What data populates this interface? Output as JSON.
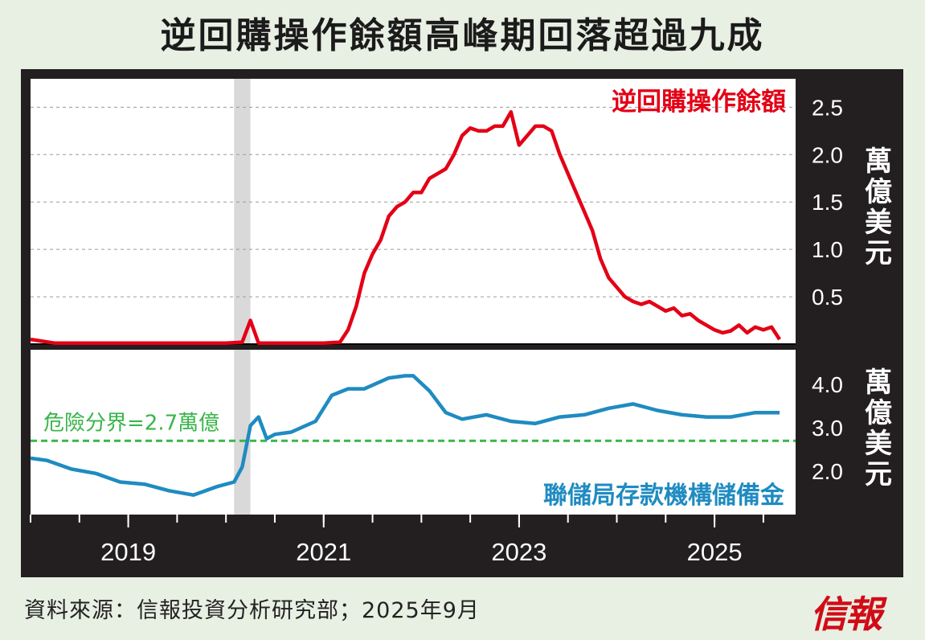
{
  "title": "逆回購操作餘額高峰期回落超過九成",
  "source": "資料來源：信報投資分析研究部；2025年9月",
  "logo": "信報",
  "colors": {
    "background": "#e8efe3",
    "frame": "#231f20",
    "reverse_repo": "#e30016",
    "reserves": "#1f8bc1",
    "danger_line": "#39b54a",
    "recession_band": "#d9d9d9"
  },
  "chart_data": [
    {
      "type": "line",
      "panel": "top",
      "series": [
        {
          "name": "逆回購操作餘額",
          "x": [
            "2018-01",
            "2018-04",
            "2018-07",
            "2018-10",
            "2019-01",
            "2019-04",
            "2019-07",
            "2019-10",
            "2020-01",
            "2020-03",
            "2020-04",
            "2020-05",
            "2020-07",
            "2020-10",
            "2021-01",
            "2021-03",
            "2021-04",
            "2021-05",
            "2021-06",
            "2021-07",
            "2021-08",
            "2021-09",
            "2021-10",
            "2021-11",
            "2021-12",
            "2022-01",
            "2022-02",
            "2022-03",
            "2022-04",
            "2022-05",
            "2022-06",
            "2022-07",
            "2022-08",
            "2022-09",
            "2022-10",
            "2022-11",
            "2022-12",
            "2023-01",
            "2023-02",
            "2023-03",
            "2023-04",
            "2023-05",
            "2023-06",
            "2023-07",
            "2023-08",
            "2023-09",
            "2023-10",
            "2023-11",
            "2023-12",
            "2024-01",
            "2024-02",
            "2024-03",
            "2024-04",
            "2024-05",
            "2024-06",
            "2024-07",
            "2024-08",
            "2024-09",
            "2024-10",
            "2024-11",
            "2024-12",
            "2025-01",
            "2025-02",
            "2025-03",
            "2025-04",
            "2025-05",
            "2025-06",
            "2025-07",
            "2025-08",
            "2025-09"
          ],
          "values": [
            0.05,
            0.01,
            0.01,
            0.01,
            0.01,
            0.01,
            0.01,
            0.01,
            0.01,
            0.02,
            0.25,
            0.01,
            0.01,
            0.01,
            0.01,
            0.02,
            0.15,
            0.4,
            0.75,
            0.95,
            1.1,
            1.35,
            1.45,
            1.5,
            1.6,
            1.6,
            1.75,
            1.8,
            1.85,
            2.0,
            2.2,
            2.28,
            2.25,
            2.25,
            2.3,
            2.3,
            2.45,
            2.1,
            2.2,
            2.3,
            2.3,
            2.25,
            2.0,
            1.8,
            1.6,
            1.4,
            1.2,
            0.9,
            0.7,
            0.6,
            0.5,
            0.45,
            0.42,
            0.45,
            0.4,
            0.35,
            0.38,
            0.3,
            0.32,
            0.25,
            0.2,
            0.15,
            0.12,
            0.14,
            0.2,
            0.12,
            0.18,
            0.15,
            0.18,
            0.05
          ]
        }
      ],
      "unit_label": "萬億美元",
      "yticks": [
        0.5,
        1.0,
        1.5,
        2.0,
        2.5
      ],
      "ytick_labels": [
        "0.5",
        "1.0",
        "1.5",
        "2.0",
        "2.5"
      ],
      "ylim": [
        0,
        2.8
      ],
      "grid": true,
      "legend": "top-right"
    },
    {
      "type": "line",
      "panel": "bottom",
      "series": [
        {
          "name": "聯儲局存款機構儲備金",
          "x": [
            "2018-01",
            "2018-03",
            "2018-06",
            "2018-09",
            "2018-12",
            "2019-03",
            "2019-06",
            "2019-09",
            "2019-12",
            "2020-02",
            "2020-03",
            "2020-04",
            "2020-05",
            "2020-06",
            "2020-07",
            "2020-09",
            "2020-12",
            "2021-02",
            "2021-04",
            "2021-06",
            "2021-09",
            "2021-11",
            "2021-12",
            "2022-02",
            "2022-04",
            "2022-06",
            "2022-09",
            "2022-12",
            "2023-03",
            "2023-06",
            "2023-09",
            "2023-12",
            "2024-03",
            "2024-06",
            "2024-09",
            "2024-12",
            "2025-03",
            "2025-06",
            "2025-09"
          ],
          "values": [
            2.3,
            2.25,
            2.05,
            1.95,
            1.75,
            1.7,
            1.55,
            1.45,
            1.65,
            1.75,
            2.1,
            3.05,
            3.25,
            2.75,
            2.85,
            2.9,
            3.15,
            3.75,
            3.9,
            3.9,
            4.15,
            4.2,
            4.2,
            3.85,
            3.35,
            3.2,
            3.3,
            3.15,
            3.1,
            3.25,
            3.3,
            3.45,
            3.55,
            3.4,
            3.3,
            3.25,
            3.25,
            3.35,
            3.35
          ]
        }
      ],
      "unit_label": "萬億美元",
      "yticks": [
        2.0,
        3.0,
        4.0
      ],
      "ytick_labels": [
        "2.0",
        "3.0",
        "4.0"
      ],
      "ylim": [
        1.0,
        4.8
      ],
      "threshold": {
        "value": 2.7,
        "label": "危險分界=2.7萬億"
      },
      "legend": "bottom-right"
    }
  ],
  "x_axis": {
    "tick_labels": [
      "2019",
      "2021",
      "2023",
      "2025"
    ],
    "tick_years": [
      2019,
      2021,
      2023,
      2025
    ]
  },
  "shaded_period": {
    "start": "2020-02",
    "end": "2020-04"
  }
}
